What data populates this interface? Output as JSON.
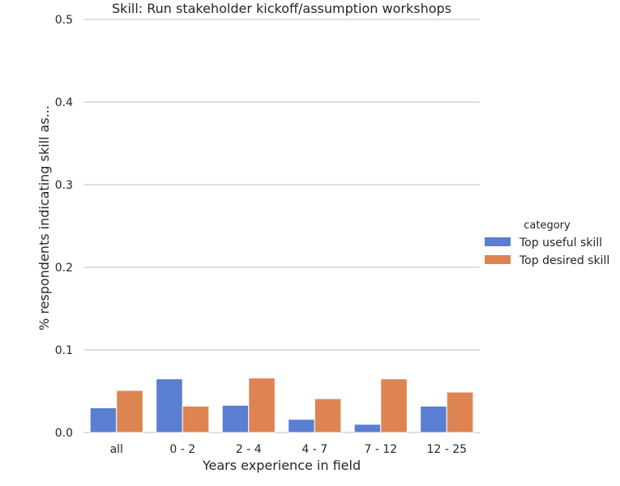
{
  "chart_data": {
    "type": "bar",
    "title": "Skill: Run stakeholder kickoff/assumption workshops",
    "xlabel": "Years experience in field",
    "ylabel": "% respondents indicating skill as...",
    "categories": [
      "all",
      "0 - 2",
      "2 - 4",
      "4 - 7",
      "7 - 12",
      "12 - 25"
    ],
    "series": [
      {
        "name": "Top useful skill",
        "color": "#5a7fd1",
        "values": [
          0.03,
          0.065,
          0.033,
          0.016,
          0.01,
          0.032
        ]
      },
      {
        "name": "Top desired skill",
        "color": "#dd8452",
        "values": [
          0.051,
          0.032,
          0.066,
          0.041,
          0.065,
          0.049
        ]
      }
    ],
    "ylim": [
      0,
      0.5
    ],
    "yticks": [
      "0.0",
      "0.1",
      "0.2",
      "0.3",
      "0.4",
      "0.5"
    ],
    "ytick_values": [
      0,
      0.1,
      0.2,
      0.3,
      0.4,
      0.5
    ],
    "grid": "horizontal",
    "legend": {
      "title": "category",
      "position": "right"
    }
  }
}
